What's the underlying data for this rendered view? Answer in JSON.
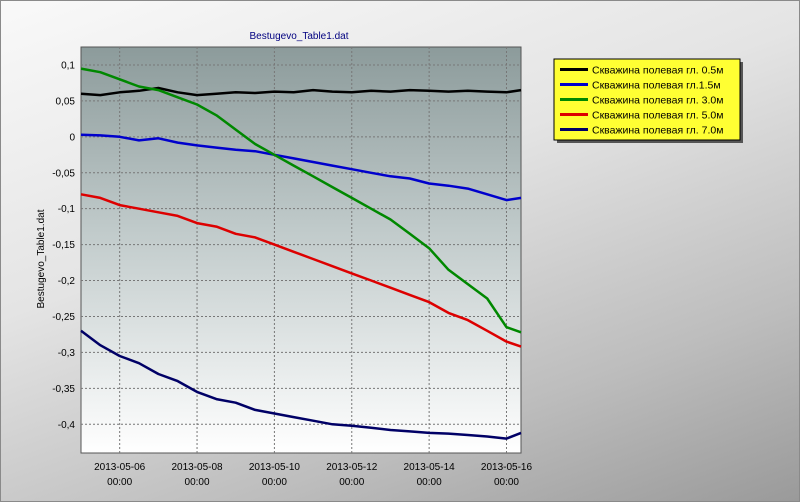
{
  "chart_data": {
    "type": "line",
    "title": "Bestugevo_Table1.dat",
    "ylabel": "Bestugevo_Table1.dat",
    "xlabel": "",
    "ylim": [
      -0.44,
      0.125
    ],
    "yticks": [
      0.1,
      0.05,
      0,
      -0.05,
      -0.1,
      -0.15,
      -0.2,
      -0.25,
      -0.3,
      -0.35,
      -0.4
    ],
    "ytick_labels": [
      "0,1",
      "0,05",
      "0",
      "-0,05",
      "-0,1",
      "-0,15",
      "-0,2",
      "-0,25",
      "-0,3",
      "-0,35",
      "-0,4"
    ],
    "xlim": [
      "2013-05-05 00:00",
      "2013-05-16 09:00"
    ],
    "xticks": [
      {
        "date": "2013-05-06 00:00",
        "label1": "2013-05-06",
        "label2": "00:00"
      },
      {
        "date": "2013-05-08 00:00",
        "label1": "2013-05-08",
        "label2": "00:00"
      },
      {
        "date": "2013-05-10 00:00",
        "label1": "2013-05-10",
        "label2": "00:00"
      },
      {
        "date": "2013-05-12 00:00",
        "label1": "2013-05-12",
        "label2": "00:00"
      },
      {
        "date": "2013-05-14 00:00",
        "label1": "2013-05-14",
        "label2": "00:00"
      },
      {
        "date": "2013-05-16 00:00",
        "label1": "2013-05-16",
        "label2": "00:00"
      }
    ],
    "grid": true,
    "legend_position": "top-right",
    "x": [
      "2013-05-05 00:00",
      "2013-05-05 12:00",
      "2013-05-06 00:00",
      "2013-05-06 12:00",
      "2013-05-07 00:00",
      "2013-05-07 12:00",
      "2013-05-08 00:00",
      "2013-05-08 12:00",
      "2013-05-09 00:00",
      "2013-05-09 12:00",
      "2013-05-10 00:00",
      "2013-05-10 12:00",
      "2013-05-11 00:00",
      "2013-05-11 12:00",
      "2013-05-12 00:00",
      "2013-05-12 12:00",
      "2013-05-13 00:00",
      "2013-05-13 12:00",
      "2013-05-14 00:00",
      "2013-05-14 12:00",
      "2013-05-15 00:00",
      "2013-05-15 12:00",
      "2013-05-16 00:00",
      "2013-05-16 09:00"
    ],
    "series": [
      {
        "name": "Скважина полевая гл. 0.5м",
        "color": "#000000",
        "values": [
          0.06,
          0.058,
          0.062,
          0.064,
          0.068,
          0.062,
          0.058,
          0.06,
          0.062,
          0.061,
          0.063,
          0.062,
          0.065,
          0.063,
          0.062,
          0.064,
          0.063,
          0.065,
          0.064,
          0.063,
          0.064,
          0.063,
          0.062,
          0.065
        ]
      },
      {
        "name": "Скважина полевая гл.1.5м",
        "color": "#0000cc",
        "values": [
          0.003,
          0.002,
          0.0,
          -0.005,
          -0.002,
          -0.008,
          -0.012,
          -0.015,
          -0.018,
          -0.02,
          -0.025,
          -0.03,
          -0.035,
          -0.04,
          -0.045,
          -0.05,
          -0.055,
          -0.058,
          -0.065,
          -0.068,
          -0.072,
          -0.08,
          -0.088,
          -0.085
        ]
      },
      {
        "name": "Скважина полевая гл. 3.0м",
        "color": "#008800",
        "values": [
          0.095,
          0.09,
          0.08,
          0.07,
          0.065,
          0.055,
          0.045,
          0.03,
          0.01,
          -0.01,
          -0.025,
          -0.04,
          -0.055,
          -0.07,
          -0.085,
          -0.1,
          -0.115,
          -0.135,
          -0.155,
          -0.185,
          -0.205,
          -0.225,
          -0.265,
          -0.272
        ]
      },
      {
        "name": "Скважина полевая гл. 5.0м",
        "color": "#dd0000",
        "values": [
          -0.08,
          -0.085,
          -0.095,
          -0.1,
          -0.105,
          -0.11,
          -0.12,
          -0.125,
          -0.135,
          -0.14,
          -0.15,
          -0.16,
          -0.17,
          -0.18,
          -0.19,
          -0.2,
          -0.21,
          -0.22,
          -0.23,
          -0.245,
          -0.255,
          -0.27,
          -0.285,
          -0.292
        ]
      },
      {
        "name": "Скважина полевая гл. 7.0м",
        "color": "#000066",
        "values": [
          -0.27,
          -0.29,
          -0.305,
          -0.315,
          -0.33,
          -0.34,
          -0.355,
          -0.365,
          -0.37,
          -0.38,
          -0.385,
          -0.39,
          -0.395,
          -0.4,
          -0.402,
          -0.405,
          -0.408,
          -0.41,
          -0.412,
          -0.413,
          -0.415,
          -0.417,
          -0.42,
          -0.412
        ]
      }
    ]
  }
}
